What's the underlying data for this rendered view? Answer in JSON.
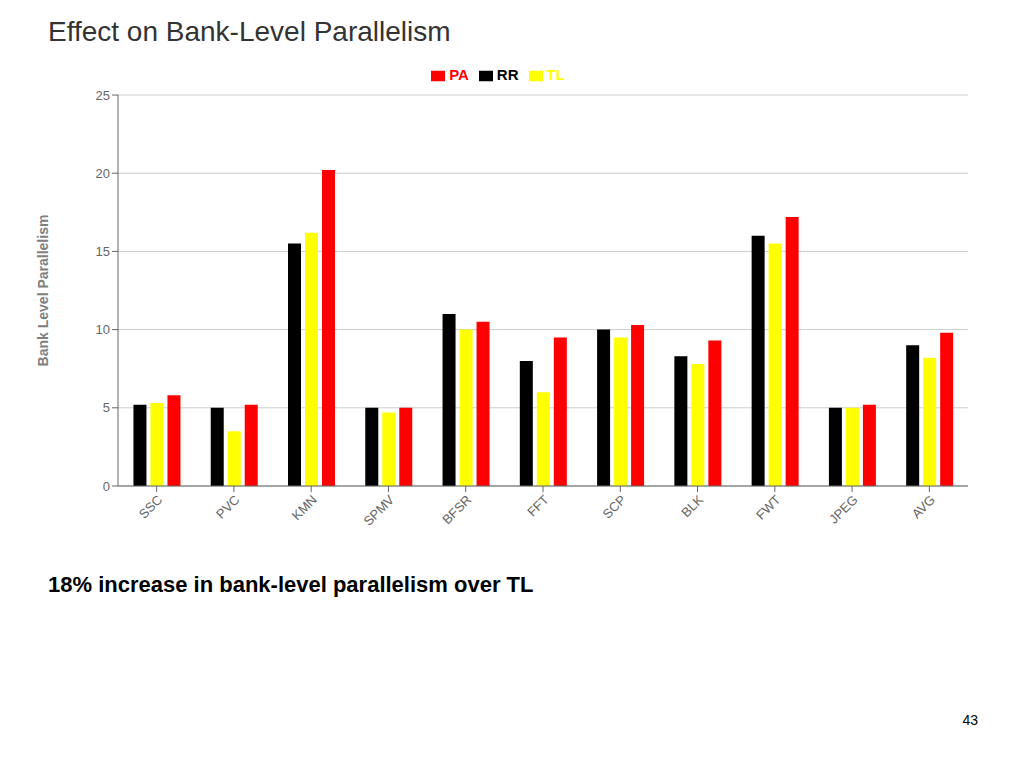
{
  "chart_data": {
    "type": "bar",
    "title": "Effect on Bank-Level Parallelism",
    "subtitle": "18% increase in bank-level parallelism over TL",
    "ylabel": "Bank Level Parallelism",
    "categories": [
      "SSC",
      "PVC",
      "KMN",
      "SPMV",
      "BFSR",
      "FFT",
      "SCP",
      "BLK",
      "FWT",
      "JPEG",
      "AVG"
    ],
    "series": [
      {
        "name": "RR",
        "color": "#000000",
        "values": [
          5.2,
          5.0,
          15.5,
          5.0,
          11.0,
          8.0,
          10.0,
          8.3,
          16.0,
          5.0,
          9.0
        ]
      },
      {
        "name": "TL",
        "color": "#ffff00",
        "values": [
          5.3,
          3.5,
          16.2,
          4.7,
          10.0,
          6.0,
          9.5,
          7.8,
          15.5,
          5.0,
          8.2
        ]
      },
      {
        "name": "PA",
        "color": "#ff0000",
        "values": [
          5.8,
          5.2,
          20.2,
          5.0,
          10.5,
          9.5,
          10.3,
          9.3,
          17.2,
          5.2,
          9.8
        ]
      }
    ],
    "ylim": [
      0,
      25
    ],
    "yticks": [
      0,
      5,
      10,
      15,
      20,
      25
    ],
    "grid": true,
    "legend": "top",
    "annotations": [
      "43"
    ]
  }
}
